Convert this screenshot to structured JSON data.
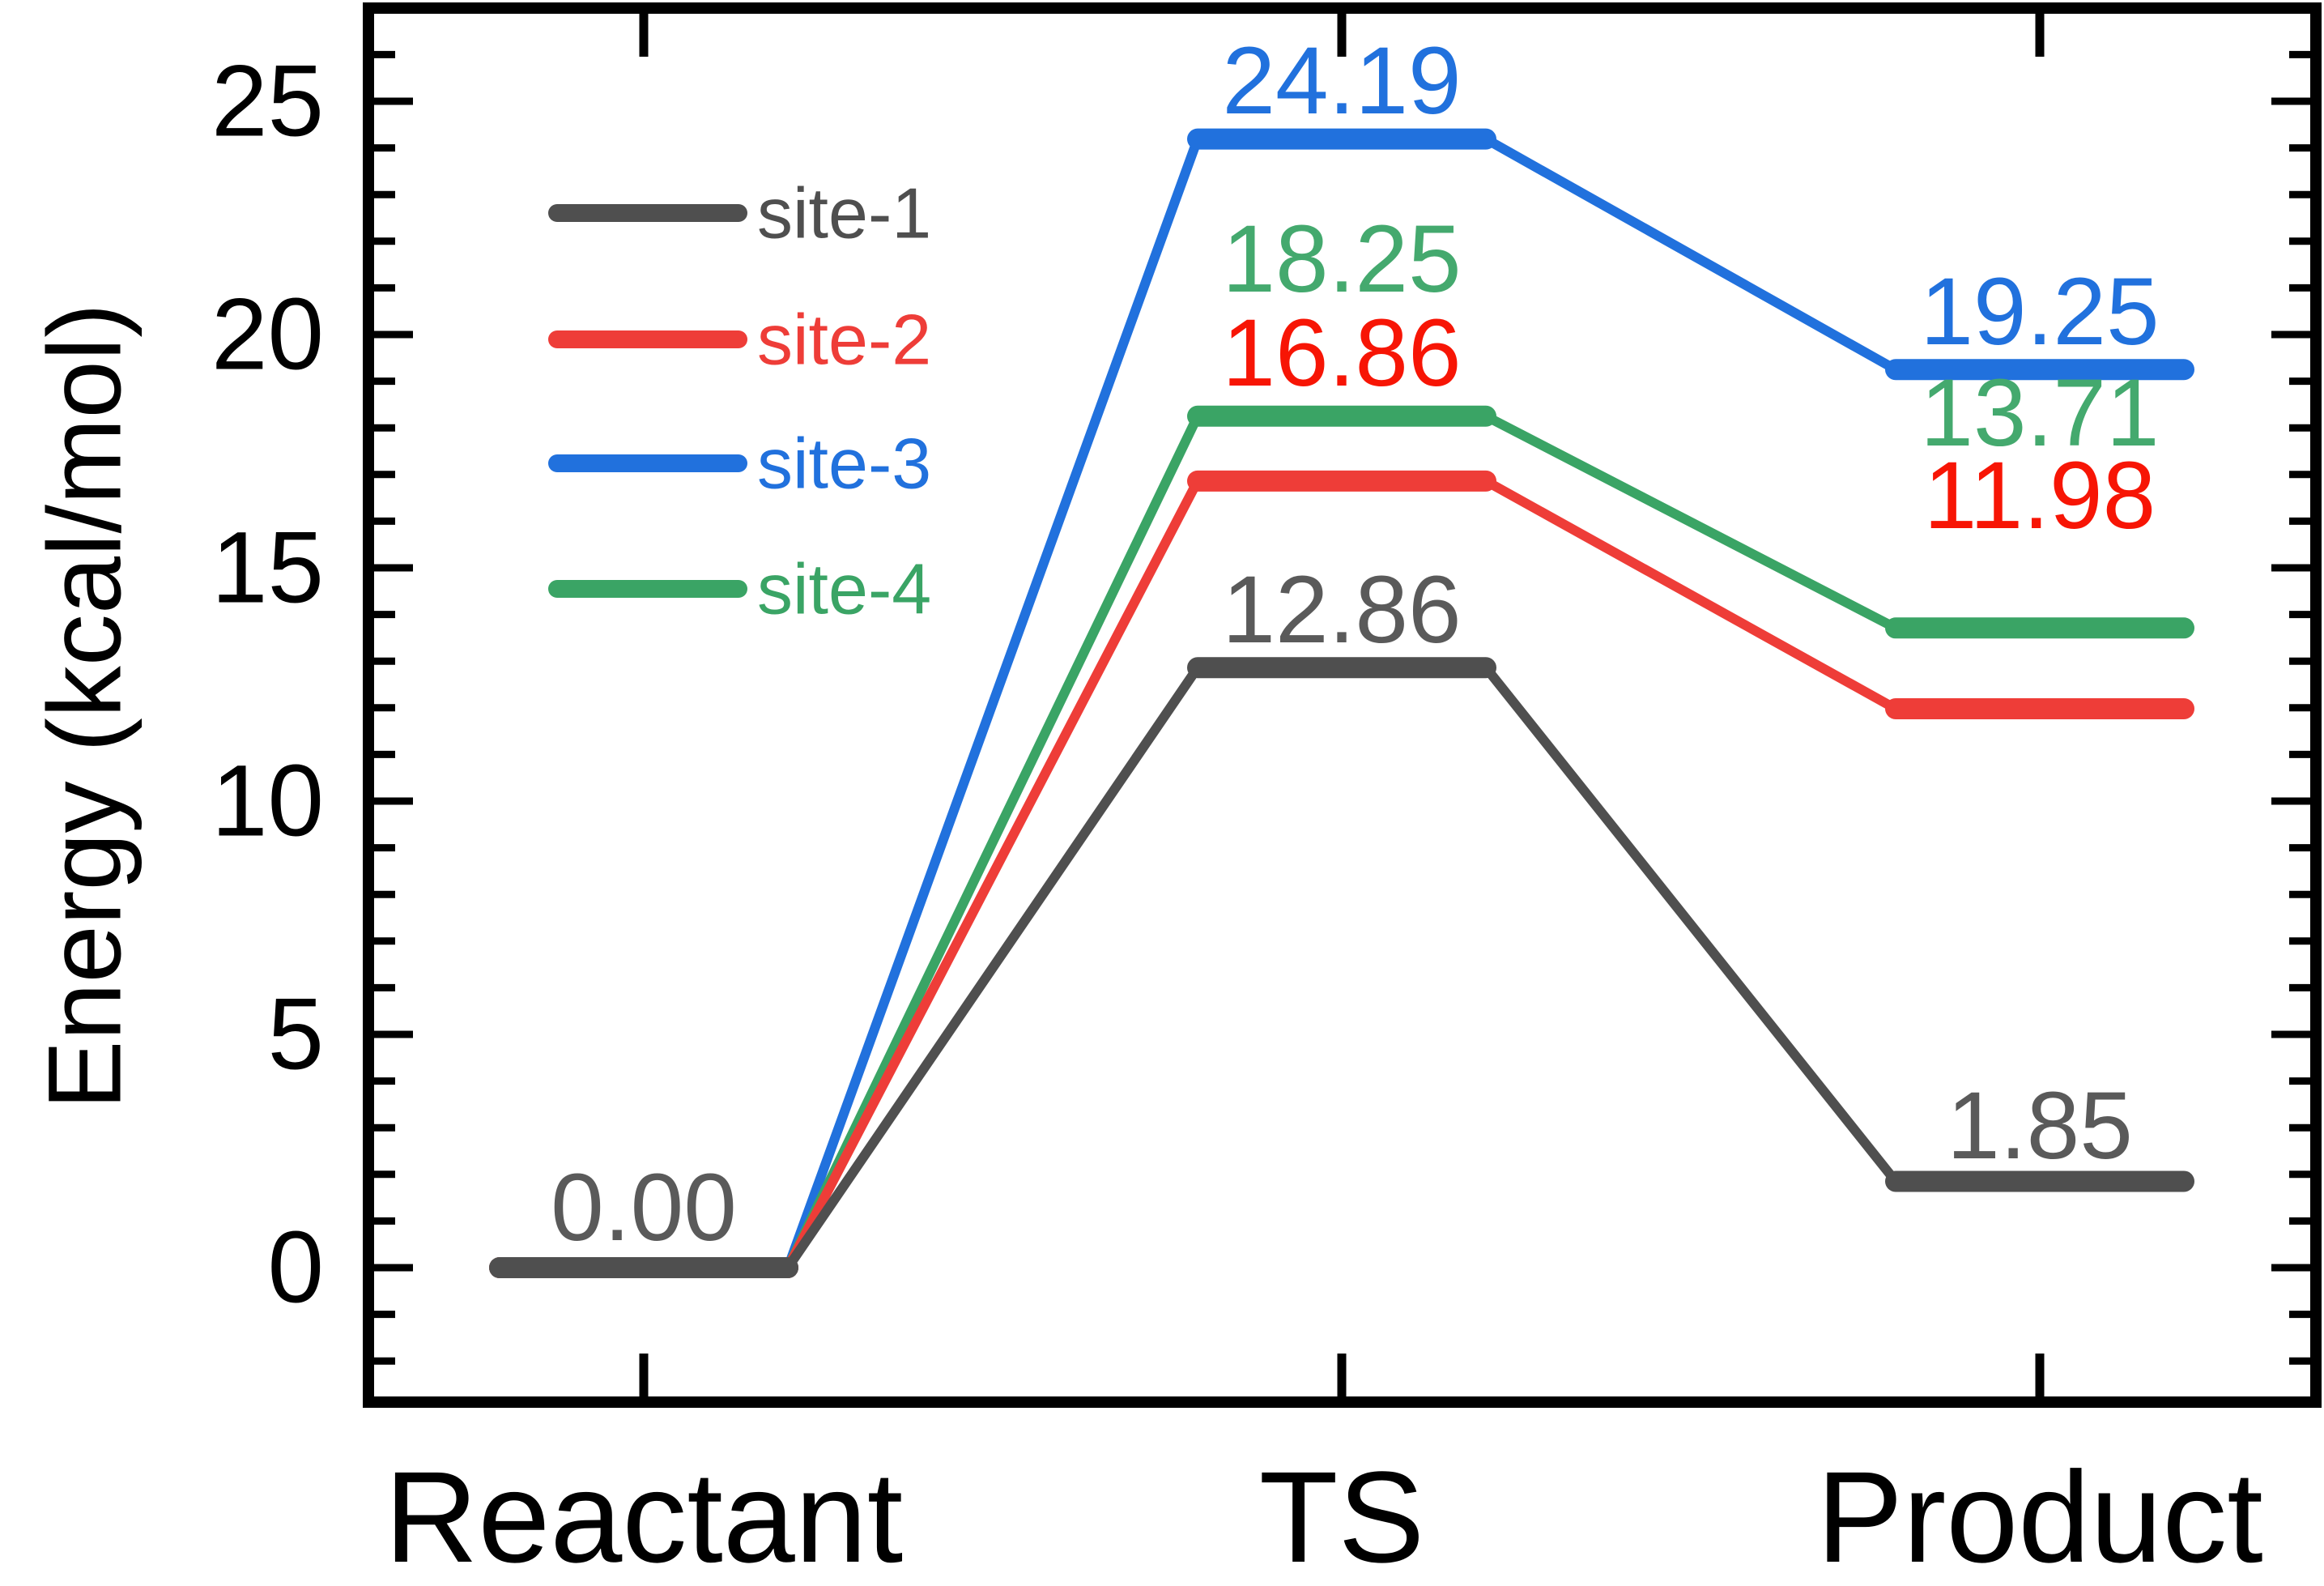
{
  "chart_data": {
    "type": "line",
    "subtype": "reaction-energy-profile",
    "title": "",
    "xlabel": "",
    "ylabel": "Energy (kcal/mol)",
    "categories": [
      "Reactant",
      "TS",
      "Product"
    ],
    "series": [
      {
        "name": "site-1",
        "color": "#4f4f4f",
        "label_color": "#5a5a5a",
        "values": [
          0.0,
          12.86,
          1.85
        ]
      },
      {
        "name": "site-2",
        "color": "#ee3d38",
        "label_color": "#f71505",
        "values": [
          0.0,
          16.86,
          11.98
        ]
      },
      {
        "name": "site-3",
        "color": "#2171dd",
        "label_color": "#2171dd",
        "values": [
          0.0,
          24.19,
          19.25
        ]
      },
      {
        "name": "site-4",
        "color": "#3aa465",
        "label_color": "#44a96e",
        "values": [
          0.0,
          18.25,
          13.71
        ]
      }
    ],
    "value_labels_shown": [
      "0.00",
      "12.86",
      "16.86",
      "24.19",
      "18.25",
      "1.85",
      "11.98",
      "19.25",
      "13.71"
    ],
    "value_label_decimals": 2,
    "shared_origin_label": "0.00",
    "ylim": [
      -2.9,
      27.0
    ],
    "yticks_major": [
      0,
      5,
      10,
      15,
      20,
      25
    ],
    "ytick_minor_step": 1,
    "grid": false,
    "legend": {
      "position": "upper-left-inside",
      "entries": [
        "site-1",
        "site-2",
        "site-3",
        "site-4"
      ]
    },
    "frame": "box-with-inward-ticks",
    "axis_color": "#000000",
    "background_color": "#ffffff"
  }
}
